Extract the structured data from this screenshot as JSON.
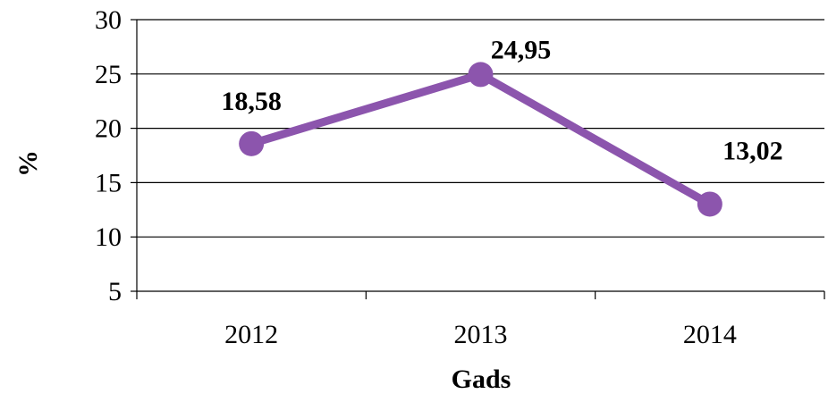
{
  "chart_data": {
    "type": "line",
    "categories": [
      "2012",
      "2013",
      "2014"
    ],
    "series": [
      {
        "values": [
          18.58,
          24.95,
          13.02
        ],
        "labels": [
          "18,58",
          "24,95",
          "13,02"
        ]
      }
    ],
    "xlabel": "Gads",
    "ylabel": "%",
    "ylim": [
      5,
      30
    ],
    "yticks": [
      5,
      10,
      15,
      20,
      25,
      30
    ],
    "grid": true,
    "legend": "none",
    "colors": {
      "line": "#8c55ad",
      "marker": "#8c55ad",
      "axis": "#000000",
      "grid": "#000000"
    }
  }
}
